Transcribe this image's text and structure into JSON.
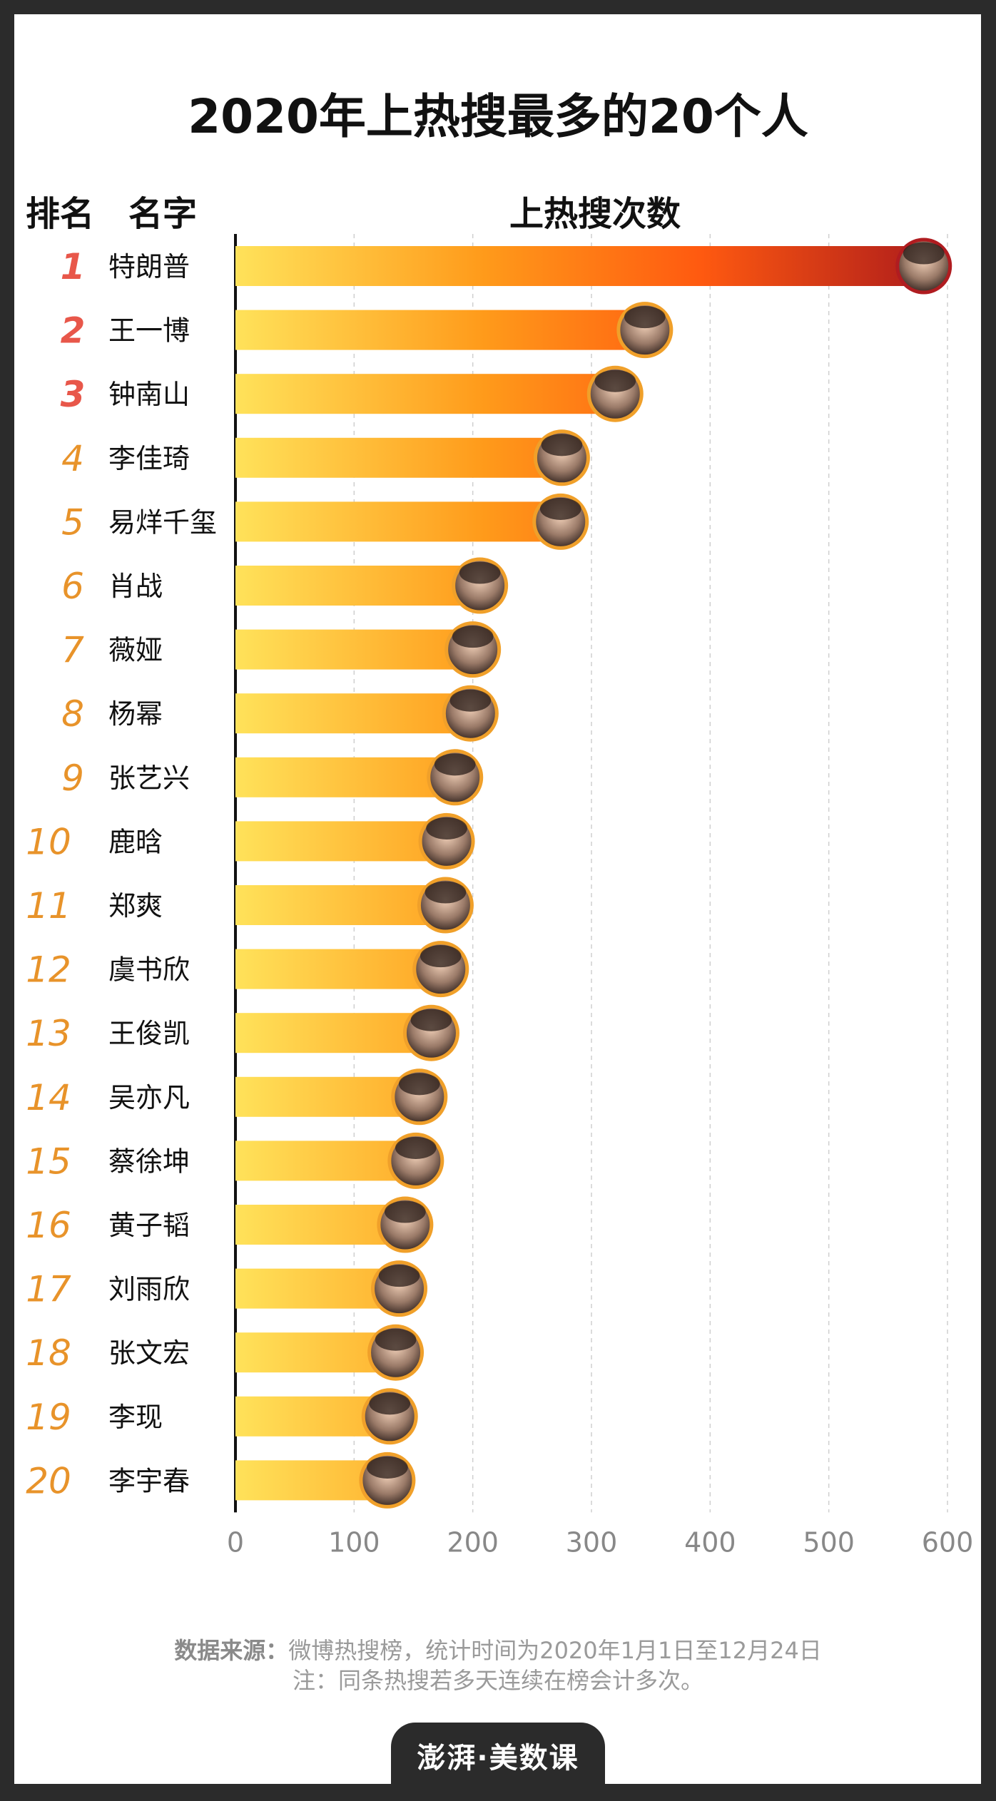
{
  "title": "2020年上热搜最多的20个人",
  "header": {
    "rank": "排名",
    "name": "名字",
    "value": "上热搜次数"
  },
  "source": {
    "label": "数据来源：",
    "text": "微博热搜榜，统计时间为2020年1月1日至12月24日",
    "note": "注：同条热搜若多天连续在榜会计多次。"
  },
  "logo": "澎湃·美数课",
  "colors": {
    "bar_start": "#ffe25a",
    "bar_mid": "#ff8c14",
    "bar_end": "#a8181c",
    "rank_top3": "#e8574a",
    "rank_other": "#e8932a",
    "ring": "#f0a02a"
  },
  "chart_data": {
    "type": "bar",
    "orientation": "horizontal",
    "xlim": [
      0,
      600
    ],
    "xticks": [
      "0",
      "100",
      "200",
      "300",
      "400",
      "500",
      "600"
    ],
    "grid": true,
    "items": [
      {
        "rank": "1",
        "name": "特朗普",
        "value": 580
      },
      {
        "rank": "2",
        "name": "王一博",
        "value": 345
      },
      {
        "rank": "3",
        "name": "钟南山",
        "value": 320
      },
      {
        "rank": "4",
        "name": "李佳琦",
        "value": 275
      },
      {
        "rank": "5",
        "name": "易烊千玺",
        "value": 274
      },
      {
        "rank": "6",
        "name": "肖战",
        "value": 206
      },
      {
        "rank": "7",
        "name": "薇娅",
        "value": 200
      },
      {
        "rank": "8",
        "name": "杨幂",
        "value": 198
      },
      {
        "rank": "9",
        "name": "张艺兴",
        "value": 185
      },
      {
        "rank": "10",
        "name": "鹿晗",
        "value": 178
      },
      {
        "rank": "11",
        "name": "郑爽",
        "value": 177
      },
      {
        "rank": "12",
        "name": "虞书欣",
        "value": 173
      },
      {
        "rank": "13",
        "name": "王俊凯",
        "value": 165
      },
      {
        "rank": "14",
        "name": "吴亦凡",
        "value": 155
      },
      {
        "rank": "15",
        "name": "蔡徐坤",
        "value": 152
      },
      {
        "rank": "16",
        "name": "黄子韬",
        "value": 143
      },
      {
        "rank": "17",
        "name": "刘雨欣",
        "value": 138
      },
      {
        "rank": "18",
        "name": "张文宏",
        "value": 135
      },
      {
        "rank": "19",
        "name": "李现",
        "value": 130
      },
      {
        "rank": "20",
        "name": "李宇春",
        "value": 128
      }
    ]
  }
}
